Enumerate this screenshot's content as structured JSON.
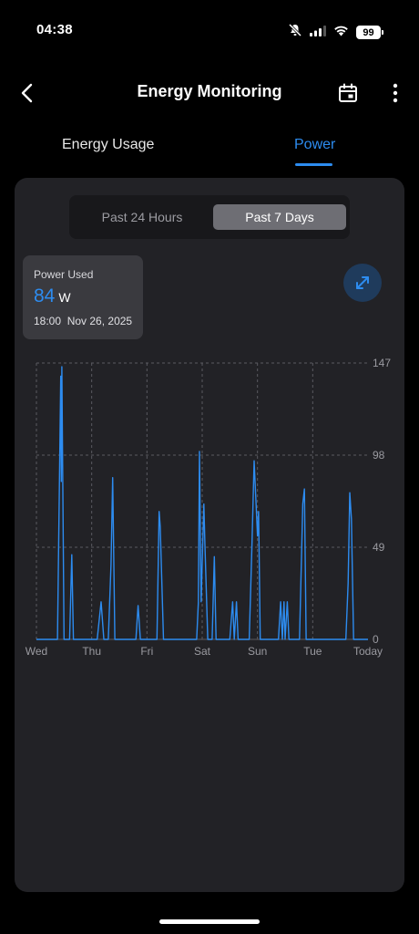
{
  "status_bar": {
    "time": "04:38",
    "battery": "99",
    "icons": [
      "muted-bell-icon",
      "cellular-signal-icon",
      "wifi-icon",
      "battery-icon"
    ]
  },
  "header": {
    "title": "Energy Monitoring",
    "back_icon": "chevron-left-icon",
    "calendar_icon": "calendar-icon",
    "more_icon": "vertical-ellipsis-icon"
  },
  "tabs": [
    {
      "label": "Energy Usage",
      "active": false
    },
    {
      "label": "Power",
      "active": true
    }
  ],
  "range_selector": {
    "options": [
      "Past 24 Hours",
      "Past 7 Days"
    ],
    "selected": "Past 7 Days"
  },
  "tooltip": {
    "label": "Power Used",
    "value": "84",
    "unit": "W",
    "time": "18:00",
    "date": "Nov 26, 2025"
  },
  "expand_icon": "expand-arrows-icon",
  "colors": {
    "accent": "#2d8cf0",
    "card_bg": "#222226",
    "grid": "#5a5a60"
  },
  "chart_data": {
    "type": "line",
    "x_axis_labels": [
      "Wed",
      "Thu",
      "Fri",
      "Sat",
      "Sun",
      "Tue",
      "Today"
    ],
    "y_ticks": [
      0,
      49,
      98,
      147
    ],
    "ylim": [
      0,
      147
    ],
    "xlim": [
      0,
      6
    ],
    "x_unit": "days",
    "grid": true,
    "series": [
      {
        "color": "#2d8cf0",
        "points": [
          [
            0,
            0
          ],
          [
            0.38,
            0
          ],
          [
            0.44,
            140
          ],
          [
            0.45,
            84
          ],
          [
            0.46,
            145
          ],
          [
            0.5,
            0
          ],
          [
            0.6,
            0
          ],
          [
            0.64,
            45
          ],
          [
            0.67,
            0
          ],
          [
            1.1,
            0
          ],
          [
            1.17,
            20
          ],
          [
            1.22,
            0
          ],
          [
            1.3,
            0
          ],
          [
            1.35,
            40
          ],
          [
            1.38,
            86
          ],
          [
            1.42,
            0
          ],
          [
            1.8,
            0
          ],
          [
            1.84,
            18
          ],
          [
            1.88,
            0
          ],
          [
            2.18,
            0
          ],
          [
            2.22,
            68
          ],
          [
            2.24,
            60
          ],
          [
            2.3,
            0
          ],
          [
            2.9,
            0
          ],
          [
            2.93,
            20
          ],
          [
            2.95,
            100
          ],
          [
            2.98,
            20
          ],
          [
            3.03,
            72
          ],
          [
            3.05,
            50
          ],
          [
            3.1,
            0
          ],
          [
            3.18,
            0
          ],
          [
            3.22,
            44
          ],
          [
            3.25,
            0
          ],
          [
            3.5,
            0
          ],
          [
            3.55,
            20
          ],
          [
            3.58,
            0
          ],
          [
            3.62,
            20
          ],
          [
            3.65,
            0
          ],
          [
            3.85,
            0
          ],
          [
            3.9,
            50
          ],
          [
            3.94,
            95
          ],
          [
            3.98,
            68
          ],
          [
            4.0,
            55
          ],
          [
            4.02,
            68
          ],
          [
            4.05,
            0
          ],
          [
            4.38,
            0
          ],
          [
            4.42,
            20
          ],
          [
            4.45,
            0
          ],
          [
            4.48,
            20
          ],
          [
            4.5,
            0
          ],
          [
            4.54,
            20
          ],
          [
            4.57,
            0
          ],
          [
            4.76,
            0
          ],
          [
            4.82,
            72
          ],
          [
            4.85,
            80
          ],
          [
            4.88,
            0
          ],
          [
            5.6,
            0
          ],
          [
            5.64,
            30
          ],
          [
            5.67,
            78
          ],
          [
            5.7,
            64
          ],
          [
            5.74,
            0
          ],
          [
            6.0,
            0
          ]
        ]
      }
    ]
  }
}
